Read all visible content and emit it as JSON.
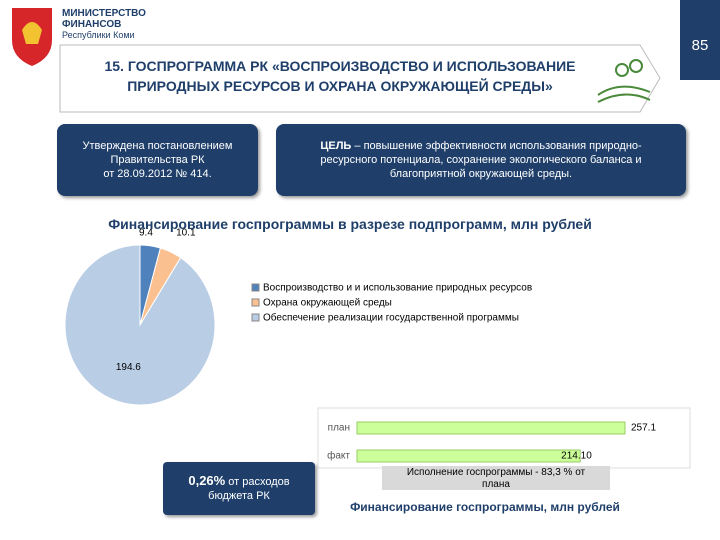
{
  "header": {
    "org": [
      "МИНИСТЕРСТВО",
      "ФИНАНСОВ",
      "Республики Коми"
    ],
    "page_number": "85",
    "title": [
      "15. ГОСПРОГРАММА РК «ВОСПРОИЗВОДСТВО И ИСПОЛЬЗОВАНИЕ",
      "ПРИРОДНЫХ РЕСУРСОВ И ОХРАНА ОКРУЖАЮЩЕЙ СРЕДЫ»"
    ]
  },
  "boxes": {
    "approved": [
      "Утверждена постановлением",
      "Правительства РК",
      "от 28.09.2012 № 414."
    ],
    "goal_label": "ЦЕЛЬ",
    "goal": [
      "– повышение эффективности использования природно-",
      "ресурсного потенциала, сохранение экологического баланса и",
      "благоприятной окружающей среды."
    ]
  },
  "chart_data": [
    {
      "type": "pie",
      "title": "Финансирование госпрограммы в разрезе подпрограмм, млн рублей",
      "categories": [
        "Воспроизводство и и использование природных ресурсов",
        "Охрана окружающей среды",
        "Обеспечение реализации государственной программы"
      ],
      "values": [
        9.4,
        10.1,
        194.6
      ],
      "colors": [
        "#4f81bd",
        "#fac090",
        "#b9cde5"
      ]
    },
    {
      "type": "hbar",
      "title": "Финансирование госпрограммы, млн рублей",
      "categories": [
        "план",
        "факт"
      ],
      "values": [
        257.1,
        214.1
      ],
      "value_labels": [
        "257.1",
        "214.10"
      ],
      "color": "#ccff99"
    }
  ],
  "share_box": {
    "value": "0,26%",
    "text": [
      "от расходов",
      "бюджета РК"
    ]
  },
  "execution_note": [
    "Исполнение госпрограммы - 83,3 % от",
    "плана"
  ]
}
